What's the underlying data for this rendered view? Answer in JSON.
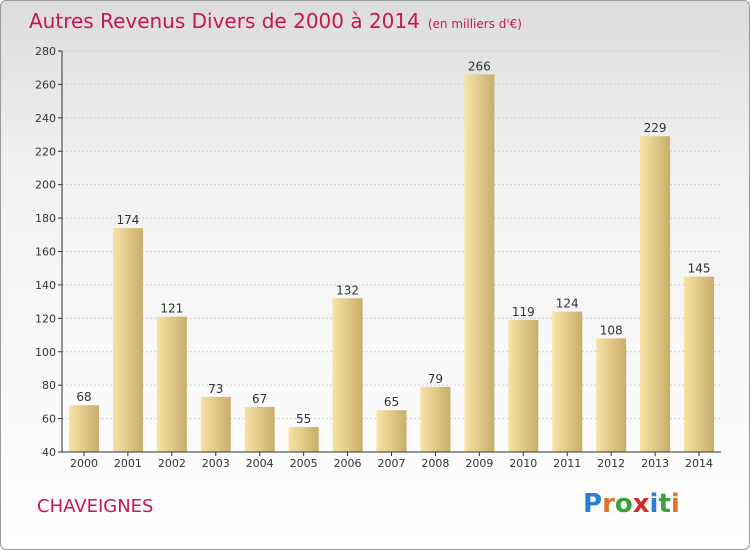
{
  "title": "Autres Revenus Divers de 2000 à 2014",
  "subtitle": "(en milliers d'€)",
  "commune": "CHAVEIGNES",
  "logo_text": "Proxiti",
  "colors": {
    "title": "#c8174a",
    "bar_light": "#f7e4a6",
    "bar_dark": "#c9ad6a",
    "axis": "#333333"
  },
  "chart_data": {
    "type": "bar",
    "title": "Autres Revenus Divers de 2000 à 2014",
    "subtitle": "(en milliers d'€)",
    "categories": [
      "2000",
      "2001",
      "2002",
      "2003",
      "2004",
      "2005",
      "2006",
      "2007",
      "2008",
      "2009",
      "2010",
      "2011",
      "2012",
      "2013",
      "2014"
    ],
    "values": [
      68,
      174,
      121,
      73,
      67,
      55,
      132,
      65,
      79,
      266,
      119,
      124,
      108,
      229,
      145
    ],
    "ylim": [
      40,
      280
    ],
    "yticks": [
      40,
      60,
      80,
      100,
      120,
      140,
      160,
      180,
      200,
      220,
      240,
      260,
      280
    ],
    "grid": true,
    "data_labels": true
  }
}
